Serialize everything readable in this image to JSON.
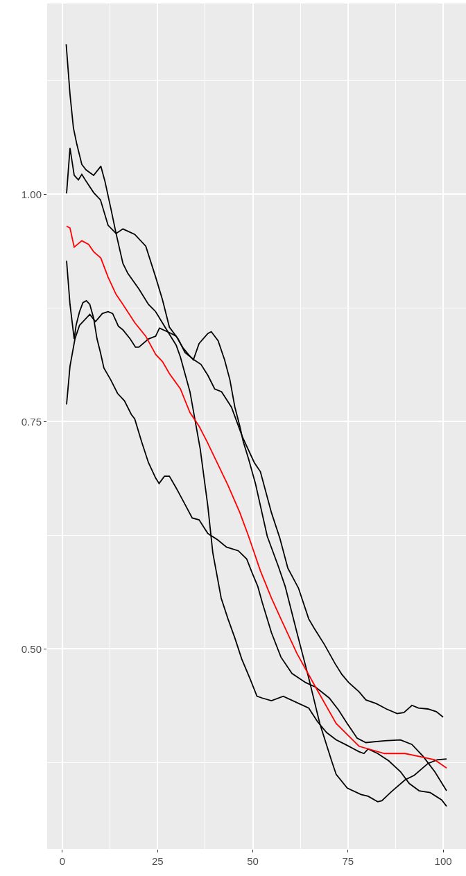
{
  "chart_data": {
    "type": "line",
    "xlim": [
      -4,
      106
    ],
    "ylim": [
      0.28,
      1.21
    ],
    "xticks": [
      0,
      25,
      50,
      75,
      100
    ],
    "yticks": [
      {
        "value": 0.5,
        "label": "0.50"
      },
      {
        "value": 0.75,
        "label": "0.75"
      },
      {
        "value": 1.0,
        "label": "1.00"
      }
    ],
    "grid": true,
    "series": [
      {
        "color": "#000000",
        "x": [
          1,
          2,
          2.9,
          3.8,
          5.1,
          6.2,
          8.2,
          10.1,
          11.2,
          12.7,
          14.1,
          15.9,
          17.2,
          20.1,
          22.6,
          24.5,
          27.4,
          29.9,
          31.0,
          33.5,
          36.2,
          38.2,
          39.5,
          41.7,
          43.5,
          45.3,
          47.1,
          49.3,
          51.1,
          52.5,
          54.9,
          58.0,
          62.1,
          64.7,
          67.0,
          69.4,
          71.9,
          74.3,
          77.9,
          79.2,
          80.3,
          82.8,
          85.7,
          88.8,
          91.1,
          93.7,
          96.6,
          99.6,
          100.9
        ],
        "values": [
          1.165,
          1.11,
          1.073,
          1.055,
          1.033,
          1.027,
          1.021,
          1.031,
          1.014,
          0.985,
          0.957,
          0.924,
          0.913,
          0.896,
          0.879,
          0.871,
          0.851,
          0.834,
          0.821,
          0.783,
          0.72,
          0.657,
          0.606,
          0.556,
          0.533,
          0.512,
          0.489,
          0.467,
          0.448,
          0.446,
          0.443,
          0.448,
          0.44,
          0.435,
          0.42,
          0.408,
          0.4,
          0.395,
          0.387,
          0.385,
          0.39,
          0.385,
          0.377,
          0.365,
          0.352,
          0.344,
          0.342,
          0.334,
          0.327
        ]
      },
      {
        "color": "#000000",
        "x": [
          1.1,
          2.0,
          3.1,
          4.2,
          5.1,
          6.3,
          8.2,
          10.0,
          12.0,
          14.1,
          15.9,
          19.0,
          21.9,
          24.5,
          26.3,
          28.1,
          30.4,
          32.2,
          34.6,
          36.4,
          38.2,
          40.0,
          41.8,
          44.4,
          47.3,
          50.4,
          52.0,
          54.9,
          57.1,
          59.2,
          62.0,
          64.7,
          66.1,
          68.8,
          71.6,
          73.4,
          75.2,
          77.9,
          79.7,
          82.4,
          85.1,
          87.9,
          89.7,
          91.8,
          93.5,
          96.0,
          98.2,
          100
        ],
        "values": [
          1.001,
          1.051,
          1.021,
          1.016,
          1.022,
          1.014,
          1.002,
          0.994,
          0.966,
          0.957,
          0.962,
          0.956,
          0.943,
          0.909,
          0.884,
          0.854,
          0.841,
          0.826,
          0.818,
          0.813,
          0.801,
          0.786,
          0.783,
          0.766,
          0.733,
          0.705,
          0.695,
          0.65,
          0.622,
          0.589,
          0.567,
          0.533,
          0.523,
          0.505,
          0.484,
          0.472,
          0.463,
          0.453,
          0.444,
          0.44,
          0.434,
          0.429,
          0.43,
          0.438,
          0.435,
          0.434,
          0.431,
          0.425
        ]
      },
      {
        "color": "#000000",
        "x": [
          1.1,
          2.0,
          3.3,
          4.5,
          7.2,
          8.7,
          10.5,
          12.0,
          13.2,
          14.7,
          15.9,
          17.8,
          19.2,
          20.1,
          22.6,
          24.5,
          25.5,
          28.6,
          29.9,
          31.7,
          33.5,
          34.4,
          35.9,
          38.2,
          39.1,
          40.9,
          42.6,
          44.0,
          45.3,
          46.6,
          47.5,
          48.9,
          50.7,
          53.8,
          56.7,
          58.5,
          61.6,
          64.7,
          67.6,
          70.7,
          71.9,
          74.8,
          78.4,
          80.3,
          82.8,
          83.9,
          86.4,
          90.0,
          92.4,
          96.0,
          98.4,
          100.9
        ],
        "values": [
          0.769,
          0.811,
          0.841,
          0.856,
          0.868,
          0.86,
          0.869,
          0.871,
          0.869,
          0.855,
          0.851,
          0.841,
          0.832,
          0.832,
          0.841,
          0.844,
          0.853,
          0.847,
          0.844,
          0.831,
          0.822,
          0.818,
          0.836,
          0.847,
          0.849,
          0.839,
          0.818,
          0.796,
          0.766,
          0.745,
          0.728,
          0.709,
          0.682,
          0.624,
          0.591,
          0.569,
          0.518,
          0.468,
          0.418,
          0.377,
          0.362,
          0.347,
          0.34,
          0.338,
          0.332,
          0.333,
          0.343,
          0.356,
          0.361,
          0.374,
          0.378,
          0.379
        ]
      },
      {
        "color": "#000000",
        "x": [
          1.1,
          2.0,
          3.1,
          3.6,
          4.5,
          5.4,
          6.3,
          7.2,
          8.2,
          9.1,
          10.0,
          10.9,
          12.7,
          14.5,
          16.3,
          18.1,
          19.0,
          20.8,
          22.6,
          24.5,
          25.4,
          26.8,
          28.1,
          29.9,
          31.7,
          34.1,
          35.9,
          38.2,
          40.8,
          43.1,
          46.2,
          48.4,
          49.8,
          51.3,
          52.5,
          54.9,
          57.4,
          60.3,
          63.9,
          66.5,
          70.1,
          72.5,
          74.8,
          77.4,
          79.7,
          84.6,
          88.8,
          91.8,
          94.7,
          97.8,
          100.9
        ],
        "values": [
          0.927,
          0.879,
          0.841,
          0.856,
          0.871,
          0.881,
          0.883,
          0.879,
          0.864,
          0.841,
          0.826,
          0.809,
          0.796,
          0.781,
          0.773,
          0.758,
          0.753,
          0.728,
          0.705,
          0.688,
          0.682,
          0.69,
          0.69,
          0.677,
          0.663,
          0.644,
          0.642,
          0.627,
          0.62,
          0.612,
          0.608,
          0.599,
          0.584,
          0.569,
          0.551,
          0.518,
          0.491,
          0.473,
          0.463,
          0.458,
          0.446,
          0.433,
          0.418,
          0.402,
          0.397,
          0.399,
          0.4,
          0.395,
          0.382,
          0.365,
          0.344
        ]
      },
      {
        "color": "#ff0000",
        "x": [
          1.1,
          2.0,
          3.1,
          5.1,
          6.9,
          8.2,
          10.1,
          12.0,
          14.1,
          15.9,
          19.0,
          21.9,
          24.5,
          26.3,
          28.1,
          31.0,
          33.5,
          35.9,
          38.0,
          40.4,
          43.5,
          46.6,
          48.9,
          52.0,
          54.9,
          57.4,
          61.6,
          66.5,
          71.9,
          77.9,
          84.6,
          90.0,
          94.7,
          97.8,
          100.9
        ],
        "values": [
          0.965,
          0.963,
          0.942,
          0.949,
          0.945,
          0.937,
          0.93,
          0.909,
          0.89,
          0.879,
          0.859,
          0.844,
          0.824,
          0.816,
          0.803,
          0.786,
          0.76,
          0.745,
          0.728,
          0.707,
          0.68,
          0.65,
          0.624,
          0.586,
          0.556,
          0.533,
          0.495,
          0.458,
          0.418,
          0.393,
          0.385,
          0.385,
          0.381,
          0.378,
          0.369
        ]
      }
    ]
  }
}
